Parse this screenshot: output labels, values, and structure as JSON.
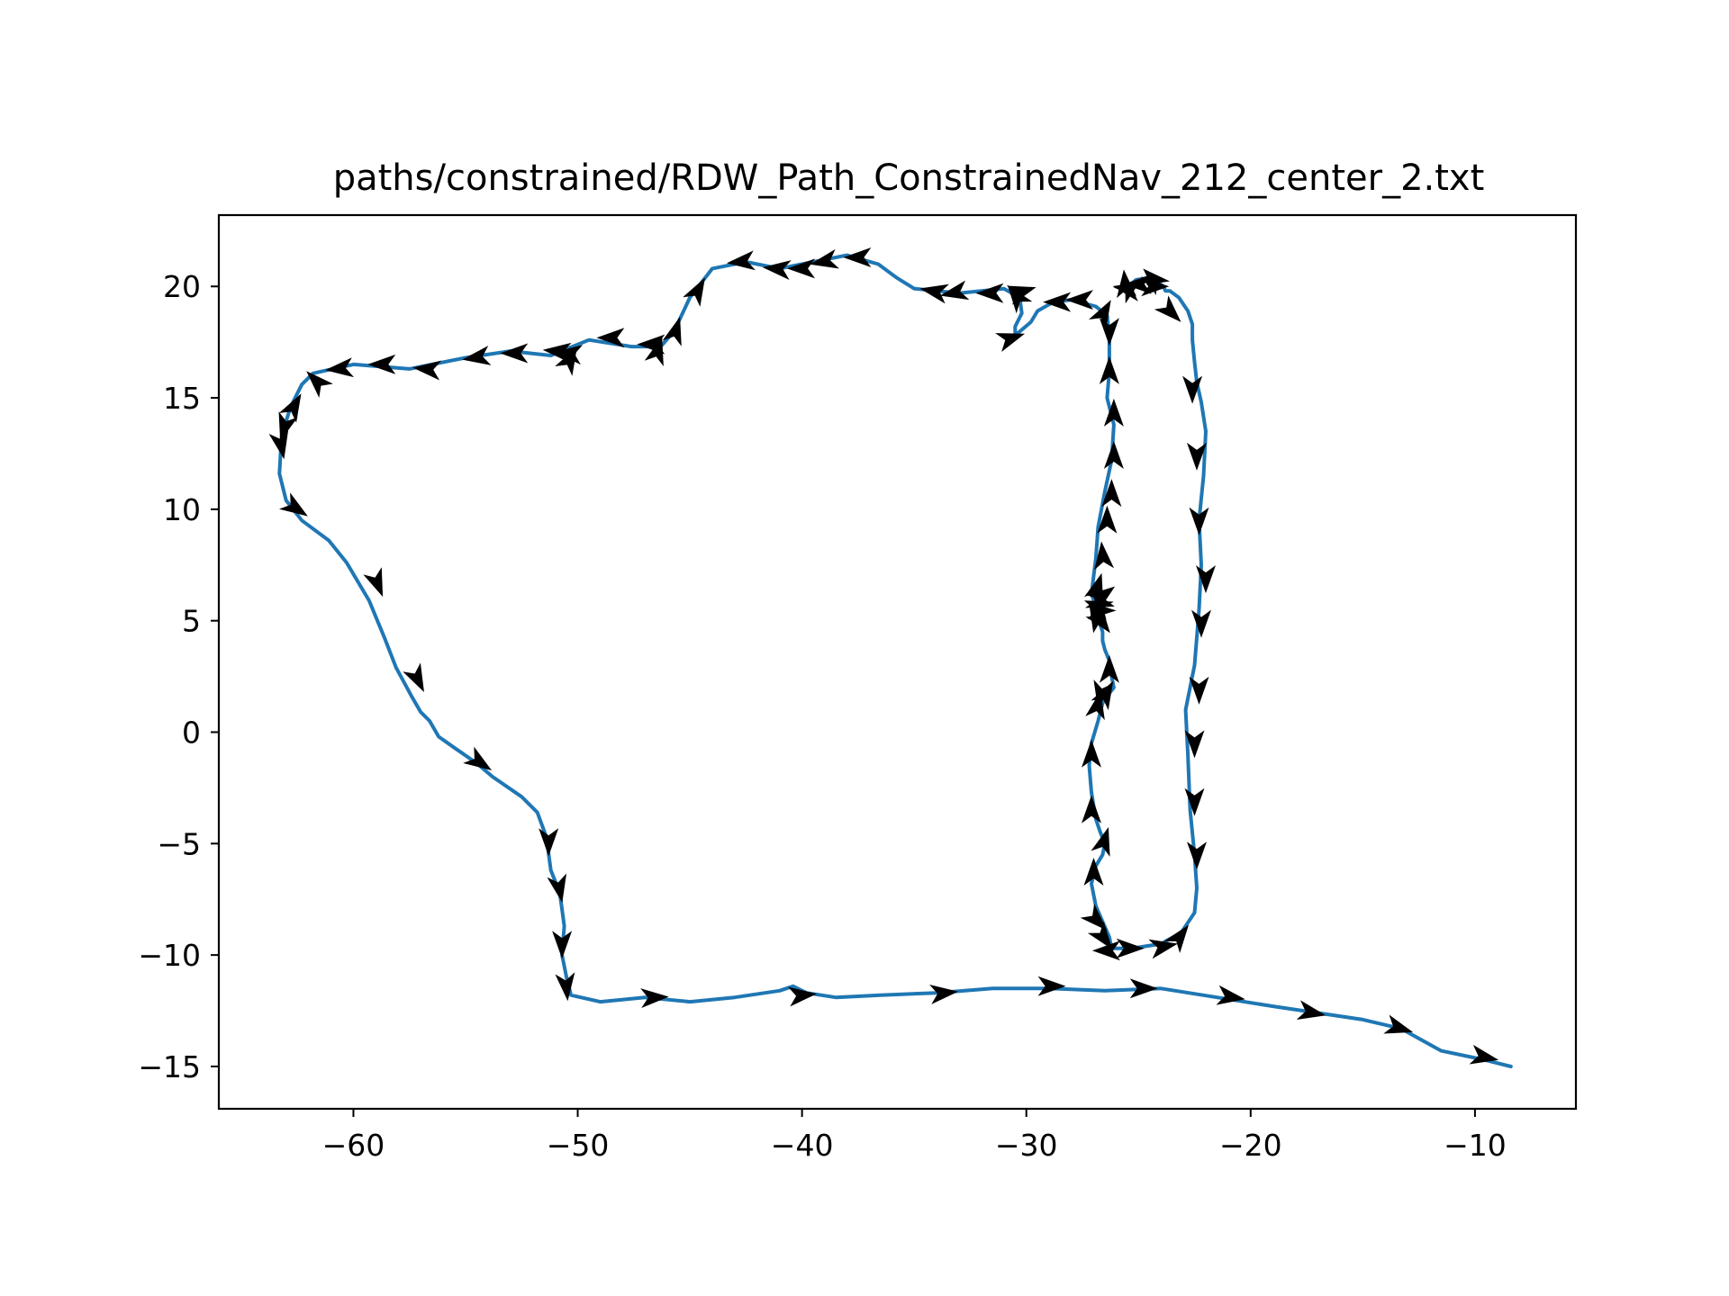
{
  "chart_data": {
    "type": "line",
    "title": "paths/constrained/RDW_Path_ConstrainedNav_212_center_2.txt",
    "xlabel": "",
    "ylabel": "",
    "xlim": [
      -66,
      -5.5
    ],
    "ylim": [
      -16.9,
      23.2
    ],
    "xticks": [
      -60,
      -50,
      -40,
      -30,
      -20,
      -10
    ],
    "yticks": [
      -15,
      -10,
      -5,
      0,
      5,
      10,
      15,
      20
    ],
    "grid": false,
    "legend": "none",
    "line_color": "#1f77b4",
    "arrow_color": "#000000",
    "path": {
      "x": [
        -8.4,
        -9.6,
        -11.5,
        -13.3,
        -15.0,
        -17.0,
        -19.0,
        -21.5,
        -24.0,
        -26.5,
        -29.0,
        -31.5,
        -34.0,
        -36.5,
        -38.5,
        -39.8,
        -40.4,
        -41.0,
        -43.0,
        -45.0,
        -47.0,
        -49.0,
        -50.3,
        -50.5,
        -50.7,
        -50.6,
        -50.8,
        -51.2,
        -51.4,
        -51.8,
        -52.5,
        -53.8,
        -54.5,
        -55.5,
        -56.2,
        -56.6,
        -57.0,
        -57.4,
        -58.1,
        -58.6,
        -59.3,
        -60.3,
        -61.1,
        -62.3,
        -63.0,
        -63.3,
        -63.2,
        -62.8,
        -62.3,
        -61.8,
        -60.0,
        -57.5,
        -55.0,
        -53.0,
        -51.2,
        -49.5,
        -47.6,
        -46.3,
        -45.7,
        -45.0,
        -44.0,
        -42.5,
        -41.0,
        -39.5,
        -38.0,
        -36.6,
        -35.8,
        -35.0,
        -33.0,
        -31.0,
        -30.3,
        -30.2,
        -30.5,
        -30.5,
        -29.8,
        -29.5,
        -28.8,
        -28.0,
        -26.9,
        -26.4,
        -26.3,
        -26.3,
        -26.4,
        -26.1,
        -26.2,
        -26.5,
        -26.8,
        -26.9,
        -27.1,
        -26.8,
        -26.7,
        -26.6,
        -26.6,
        -26.5,
        -26.3,
        -26.2,
        -26.1,
        -26.5,
        -26.6,
        -26.8,
        -27.1,
        -27.2,
        -27.1,
        -26.9,
        -26.7,
        -26.5,
        -26.6,
        -26.9,
        -27.1,
        -26.9,
        -26.6,
        -26.3,
        -26.2,
        -25.3,
        -24.0,
        -23.1,
        -22.5,
        -22.4,
        -22.5,
        -22.7,
        -22.8,
        -22.9,
        -22.5,
        -22.3,
        -22.2,
        -22.3,
        -22.1,
        -22.0,
        -22.2,
        -22.4,
        -22.5,
        -22.6,
        -22.6,
        -22.7,
        -22.8,
        -23.2,
        -23.6,
        -23.8,
        -23.9,
        -24.4,
        -25.1,
        -25.6,
        -25.8
      ],
      "y": [
        -15.0,
        -14.7,
        -14.3,
        -13.3,
        -12.9,
        -12.6,
        -12.3,
        -11.9,
        -11.5,
        -11.6,
        -11.5,
        -11.5,
        -11.7,
        -11.8,
        -11.9,
        -11.7,
        -11.4,
        -11.6,
        -11.9,
        -12.1,
        -11.9,
        -12.1,
        -11.8,
        -11.0,
        -10.0,
        -8.7,
        -7.2,
        -6.2,
        -4.7,
        -3.6,
        -2.9,
        -2.0,
        -1.4,
        -0.7,
        -0.2,
        0.5,
        0.9,
        1.6,
        2.9,
        4.2,
        5.9,
        7.6,
        8.6,
        9.5,
        10.4,
        11.6,
        13.3,
        14.6,
        15.6,
        16.1,
        16.5,
        16.3,
        16.8,
        17.1,
        16.9,
        17.6,
        17.3,
        17.3,
        18.0,
        19.5,
        20.8,
        21.1,
        20.8,
        21.1,
        21.4,
        21.0,
        20.4,
        19.9,
        19.7,
        19.9,
        19.5,
        18.8,
        18.2,
        17.8,
        18.4,
        18.9,
        19.3,
        19.4,
        19.1,
        18.7,
        17.8,
        16.2,
        15.0,
        13.8,
        12.2,
        10.8,
        9.2,
        7.8,
        6.2,
        5.4,
        4.8,
        4.5,
        4.1,
        3.7,
        3.2,
        2.5,
        2.0,
        1.5,
        1.3,
        0.5,
        -0.5,
        -1.5,
        -2.7,
        -3.9,
        -4.5,
        -5.0,
        -5.5,
        -6.0,
        -6.8,
        -7.8,
        -8.5,
        -9.2,
        -9.7,
        -9.7,
        -9.5,
        -9.0,
        -8.1,
        -7.0,
        -5.5,
        -3.5,
        -1.0,
        1.0,
        3.0,
        5.5,
        7.5,
        9.5,
        11.5,
        13.5,
        14.8,
        15.7,
        16.6,
        17.6,
        18.3,
        18.6,
        18.9,
        19.5,
        19.8,
        19.8,
        20.0,
        20.4,
        20.3,
        19.9,
        19.9
      ]
    },
    "arrows": [
      {
        "x": -9.5,
        "y": -14.6,
        "dx": 1,
        "dy": -0.2
      },
      {
        "x": -13.3,
        "y": -13.3,
        "dx": 1,
        "dy": -0.3
      },
      {
        "x": -17.2,
        "y": -12.6,
        "dx": 1,
        "dy": -0.2
      },
      {
        "x": -20.8,
        "y": -11.9,
        "dx": 1,
        "dy": -0.15
      },
      {
        "x": -24.7,
        "y": -11.5,
        "dx": 1,
        "dy": 0
      },
      {
        "x": -28.8,
        "y": -11.4,
        "dx": 1,
        "dy": 0
      },
      {
        "x": -33.6,
        "y": -11.7,
        "dx": 1,
        "dy": 0.1
      },
      {
        "x": -39.9,
        "y": -11.8,
        "dx": 1,
        "dy": 0.1
      },
      {
        "x": -46.5,
        "y": -11.9,
        "dx": 1,
        "dy": 0.05
      },
      {
        "x": -50.5,
        "y": -11.5,
        "dx": 0.1,
        "dy": -1
      },
      {
        "x": -50.7,
        "y": -9.6,
        "dx": 0,
        "dy": -1
      },
      {
        "x": -50.8,
        "y": -7.1,
        "dx": 0.2,
        "dy": -1
      },
      {
        "x": -51.3,
        "y": -5.0,
        "dx": 0,
        "dy": -1
      },
      {
        "x": -54.3,
        "y": -1.4,
        "dx": 0.9,
        "dy": -0.6
      },
      {
        "x": -57.1,
        "y": 2.3,
        "dx": 0.5,
        "dy": -1
      },
      {
        "x": -58.9,
        "y": 6.6,
        "dx": 0.4,
        "dy": -1
      },
      {
        "x": -62.5,
        "y": 10.0,
        "dx": 0.9,
        "dy": -0.6
      },
      {
        "x": -63.2,
        "y": 12.8,
        "dx": 0.2,
        "dy": -1
      },
      {
        "x": -63.1,
        "y": 13.6,
        "dx": -0.3,
        "dy": -1
      },
      {
        "x": -62.6,
        "y": 14.7,
        "dx": 0.5,
        "dy": 0.9
      },
      {
        "x": -61.7,
        "y": 15.8,
        "dx": -0.7,
        "dy": 0.7
      },
      {
        "x": -60.7,
        "y": 16.3,
        "dx": -1,
        "dy": -0.1
      },
      {
        "x": -58.8,
        "y": 16.5,
        "dx": -1,
        "dy": 0
      },
      {
        "x": -56.8,
        "y": 16.3,
        "dx": -1,
        "dy": 0.1
      },
      {
        "x": -54.6,
        "y": 16.8,
        "dx": -1,
        "dy": -0.15
      },
      {
        "x": -52.9,
        "y": 17.0,
        "dx": -1,
        "dy": 0
      },
      {
        "x": -51.0,
        "y": 17.1,
        "dx": -1,
        "dy": 0.1
      },
      {
        "x": -50.3,
        "y": 16.8,
        "dx": 0.5,
        "dy": 0.9
      },
      {
        "x": -50.5,
        "y": 17.0,
        "dx": -1,
        "dy": 0.1
      },
      {
        "x": -48.6,
        "y": 17.7,
        "dx": -1,
        "dy": 0
      },
      {
        "x": -46.8,
        "y": 17.4,
        "dx": -1,
        "dy": 0
      },
      {
        "x": -46.4,
        "y": 17.2,
        "dx": 0.3,
        "dy": 1
      },
      {
        "x": -45.6,
        "y": 18.1,
        "dx": 0.3,
        "dy": 1
      },
      {
        "x": -44.6,
        "y": 19.9,
        "dx": 0.5,
        "dy": 0.9
      },
      {
        "x": -42.8,
        "y": 21.1,
        "dx": -1,
        "dy": -0.1
      },
      {
        "x": -41.2,
        "y": 20.8,
        "dx": -1,
        "dy": 0.1
      },
      {
        "x": -40.1,
        "y": 20.8,
        "dx": -1,
        "dy": 0
      },
      {
        "x": -39.1,
        "y": 21.1,
        "dx": -1,
        "dy": -0.2
      },
      {
        "x": -37.6,
        "y": 21.3,
        "dx": -1,
        "dy": 0
      },
      {
        "x": -34.2,
        "y": 19.8,
        "dx": -1,
        "dy": 0.2
      },
      {
        "x": -33.3,
        "y": 19.7,
        "dx": -1,
        "dy": -0.2
      },
      {
        "x": -31.7,
        "y": 19.7,
        "dx": -1,
        "dy": 0
      },
      {
        "x": -30.5,
        "y": 19.6,
        "dx": -0.6,
        "dy": 0.8
      },
      {
        "x": -30.1,
        "y": 19.8,
        "dx": 1,
        "dy": 0.3
      },
      {
        "x": -30.6,
        "y": 17.7,
        "dx": 0.9,
        "dy": 0.3
      },
      {
        "x": -28.7,
        "y": 19.3,
        "dx": -1,
        "dy": 0
      },
      {
        "x": -27.7,
        "y": 19.4,
        "dx": -1,
        "dy": 0
      },
      {
        "x": -26.5,
        "y": 18.9,
        "dx": 0.5,
        "dy": 0.9
      },
      {
        "x": -26.3,
        "y": 17.9,
        "dx": 0,
        "dy": -1
      },
      {
        "x": -26.3,
        "y": 16.3,
        "dx": 0,
        "dy": 1
      },
      {
        "x": -26.1,
        "y": 14.4,
        "dx": 0,
        "dy": 1
      },
      {
        "x": -26.1,
        "y": 12.5,
        "dx": 0,
        "dy": 1
      },
      {
        "x": -26.2,
        "y": 10.8,
        "dx": 0,
        "dy": 1
      },
      {
        "x": -26.4,
        "y": 9.6,
        "dx": 0,
        "dy": 1
      },
      {
        "x": -26.6,
        "y": 8.0,
        "dx": -0.1,
        "dy": 1
      },
      {
        "x": -26.8,
        "y": 6.6,
        "dx": 0.3,
        "dy": 1
      },
      {
        "x": -26.5,
        "y": 6.2,
        "dx": 0.8,
        "dy": 0.6
      },
      {
        "x": -26.6,
        "y": 5.8,
        "dx": 1,
        "dy": -0.3
      },
      {
        "x": -26.9,
        "y": 5.7,
        "dx": -1,
        "dy": 0.4
      },
      {
        "x": -26.8,
        "y": 5.4,
        "dx": -0.8,
        "dy": -0.6
      },
      {
        "x": -26.9,
        "y": 5.0,
        "dx": -0.2,
        "dy": -1
      },
      {
        "x": -26.6,
        "y": 4.9,
        "dx": 0.6,
        "dy": -0.8
      },
      {
        "x": -26.3,
        "y": 2.9,
        "dx": 0,
        "dy": 1
      },
      {
        "x": -26.4,
        "y": 1.8,
        "dx": 0.5,
        "dy": 0.9
      },
      {
        "x": -26.8,
        "y": 1.3,
        "dx": 0.2,
        "dy": 1
      },
      {
        "x": -26.7,
        "y": 1.6,
        "dx": -0.2,
        "dy": -1
      },
      {
        "x": -27.1,
        "y": -0.9,
        "dx": 0,
        "dy": 1
      },
      {
        "x": -27.1,
        "y": -3.4,
        "dx": 0,
        "dy": 1
      },
      {
        "x": -26.5,
        "y": -4.8,
        "dx": 0.3,
        "dy": 1
      },
      {
        "x": -27.0,
        "y": -6.2,
        "dx": 0,
        "dy": 1
      },
      {
        "x": -26.8,
        "y": -8.5,
        "dx": 0.7,
        "dy": -0.7
      },
      {
        "x": -26.5,
        "y": -9.3,
        "dx": 0.6,
        "dy": -0.8
      },
      {
        "x": -26.5,
        "y": -9.8,
        "dx": -1,
        "dy": 0
      },
      {
        "x": -25.3,
        "y": -9.7,
        "dx": 1,
        "dy": 0
      },
      {
        "x": -23.8,
        "y": -9.6,
        "dx": 1,
        "dy": 0.2
      },
      {
        "x": -23.1,
        "y": -9.1,
        "dx": 0.6,
        "dy": 0.8
      },
      {
        "x": -22.4,
        "y": -5.6,
        "dx": 0,
        "dy": -1
      },
      {
        "x": -22.5,
        "y": -3.2,
        "dx": 0,
        "dy": -1
      },
      {
        "x": -22.5,
        "y": -0.6,
        "dx": 0,
        "dy": -1
      },
      {
        "x": -22.3,
        "y": 1.8,
        "dx": 0,
        "dy": -1
      },
      {
        "x": -22.2,
        "y": 4.8,
        "dx": 0,
        "dy": -1
      },
      {
        "x": -22.0,
        "y": 6.8,
        "dx": 0,
        "dy": -1
      },
      {
        "x": -22.3,
        "y": 9.4,
        "dx": 0,
        "dy": -1
      },
      {
        "x": -22.4,
        "y": 12.3,
        "dx": 0,
        "dy": -1
      },
      {
        "x": -22.6,
        "y": 15.3,
        "dx": 0,
        "dy": -1
      },
      {
        "x": -23.5,
        "y": 18.8,
        "dx": 0.7,
        "dy": -0.7
      },
      {
        "x": -24.2,
        "y": 20.0,
        "dx": 1,
        "dy": 0
      },
      {
        "x": -24.4,
        "y": 20.4,
        "dx": -0.7,
        "dy": 0.7
      },
      {
        "x": -25.1,
        "y": 20.1,
        "dx": -1,
        "dy": 0
      },
      {
        "x": -25.6,
        "y": 20.2,
        "dx": -0.1,
        "dy": 1
      },
      {
        "x": -25.3,
        "y": 20.0,
        "dx": 0.8,
        "dy": 0.6
      },
      {
        "x": -25.6,
        "y": 19.9,
        "dx": -1,
        "dy": 0.2
      }
    ]
  }
}
